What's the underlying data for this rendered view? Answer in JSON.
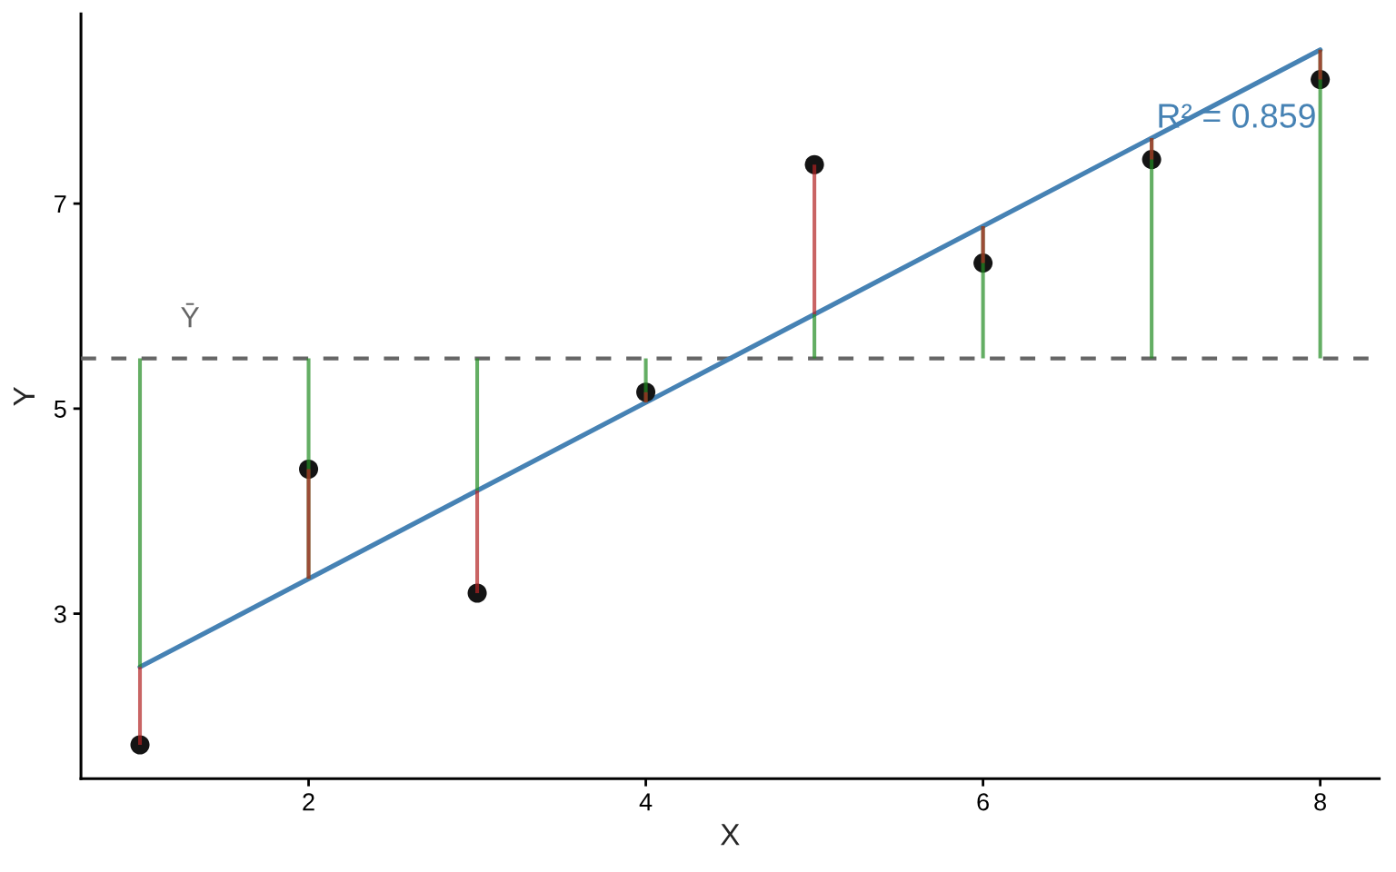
{
  "chart_data": {
    "type": "scatter",
    "xlabel": "X",
    "ylabel": "Y",
    "xlim": [
      0.65,
      8.35
    ],
    "ylim": [
      1.39,
      8.85
    ],
    "xticks": [
      2,
      4,
      6,
      8
    ],
    "yticks": [
      3,
      5,
      7
    ],
    "series": [
      {
        "type": "bar",
        "color": "#64ae64",
        "x": [
          1,
          2,
          3,
          4,
          5,
          6,
          7,
          8
        ],
        "base": [
          5.49,
          5.49,
          5.49,
          5.49,
          5.49,
          5.49,
          5.49,
          5.49
        ],
        "values": [
          -3.01,
          -2.15,
          -1.29,
          -0.43,
          0.43,
          1.29,
          2.15,
          3.01
        ]
      },
      {
        "type": "bar",
        "color": "#c96464",
        "x": [
          1,
          2,
          3,
          4,
          5,
          6,
          7,
          8
        ],
        "base": [
          2.48,
          3.34,
          4.2,
          5.06,
          5.92,
          6.78,
          7.64,
          8.5
        ],
        "values": [
          -0.76,
          1.07,
          -1.0,
          0.1,
          1.46,
          -0.36,
          -0.21,
          -0.29
        ]
      },
      {
        "type": "line",
        "color": "#4682b4",
        "x": [
          1,
          8
        ],
        "values": [
          2.48,
          8.5
        ],
        "line_style": "solid"
      },
      {
        "color": "#141414",
        "x": [
          1,
          2,
          3,
          4,
          5,
          6,
          7,
          8
        ],
        "values": [
          1.72,
          4.41,
          3.2,
          5.16,
          7.38,
          6.42,
          7.43,
          8.21
        ],
        "marker": "circle"
      }
    ],
    "ref_lines": [
      {
        "axis": "y",
        "value": 5.49,
        "label": "Ȳ",
        "color": "#666666",
        "line_style": "dashed"
      }
    ],
    "annotations": [
      "R² = 0.859"
    ]
  }
}
